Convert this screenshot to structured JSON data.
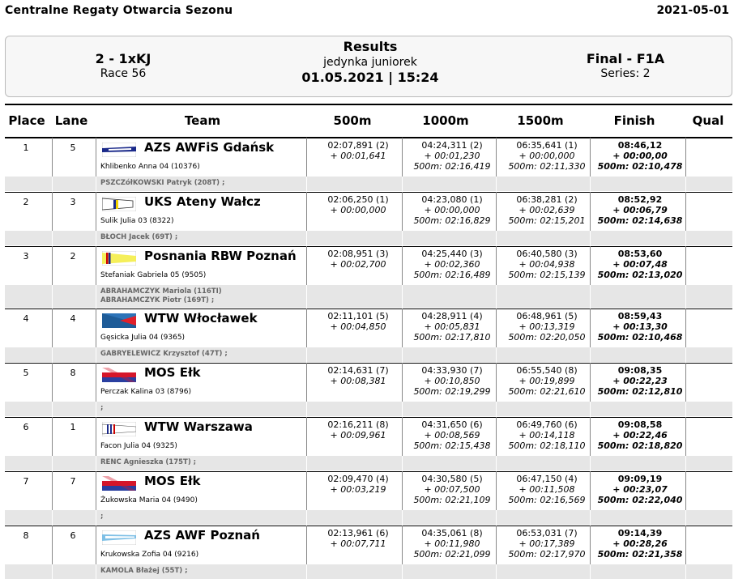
{
  "header": {
    "title": "Centralne Regaty Otwarcia Sezonu",
    "date": "2021-05-01"
  },
  "race": {
    "event": "2 - 1xKJ",
    "race_no": "Race 56",
    "results_label": "Results",
    "category": "jedynka juniorek",
    "datetime": "01.05.2021 | 15:24",
    "phase": "Final - F1A",
    "series": "Series: 2"
  },
  "columns": {
    "place": "Place",
    "lane": "Lane",
    "team": "Team",
    "s500": "500m",
    "s1000": "1000m",
    "s1500": "1500m",
    "finish": "Finish",
    "qual": "Qual"
  },
  "entries": [
    {
      "place": "1",
      "lane": "5",
      "club": "AZS AWFiS Gdańsk",
      "athlete": "Khlibenko Anna 04 (10376)",
      "coach": "PSZCZółKOWSKI Patryk (208T) ;",
      "coach2": "",
      "flag": "azs-gdansk",
      "s500": {
        "t": "02:07,891 (2)",
        "diff": "+ 00:01,641",
        "pace": ""
      },
      "s1000": {
        "t": "04:24,311 (2)",
        "diff": "+ 00:01,230",
        "pace": "500m: 02:16,419"
      },
      "s1500": {
        "t": "06:35,641 (1)",
        "diff": "+ 00:00,000",
        "pace": "500m: 02:11,330"
      },
      "finish": {
        "t": "08:46,12",
        "diff": "+ 00:00,00",
        "pace": "500m: 02:10,478"
      },
      "qual": ""
    },
    {
      "place": "2",
      "lane": "3",
      "club": "UKS Ateny Wałcz",
      "athlete": "Sulik Julia 03 (8322)",
      "coach": "BŁOCH Jacek (69T) ;",
      "coach2": "",
      "flag": "uks-walcz",
      "s500": {
        "t": "02:06,250 (1)",
        "diff": "+ 00:00,000",
        "pace": ""
      },
      "s1000": {
        "t": "04:23,080 (1)",
        "diff": "+ 00:00,000",
        "pace": "500m: 02:16,829"
      },
      "s1500": {
        "t": "06:38,281 (2)",
        "diff": "+ 00:02,639",
        "pace": "500m: 02:15,201"
      },
      "finish": {
        "t": "08:52,92",
        "diff": "+ 00:06,79",
        "pace": "500m: 02:14,638"
      },
      "qual": ""
    },
    {
      "place": "3",
      "lane": "2",
      "club": "Posnania RBW Poznań",
      "athlete": "Stefaniak Gabriela 05 (9505)",
      "coach": "ABRAHAMCZYK Mariola (116TI)",
      "coach2": "ABRAHAMCZYK Piotr (169T) ;",
      "flag": "posnania",
      "s500": {
        "t": "02:08,951 (3)",
        "diff": "+ 00:02,700",
        "pace": ""
      },
      "s1000": {
        "t": "04:25,440 (3)",
        "diff": "+ 00:02,360",
        "pace": "500m: 02:16,489"
      },
      "s1500": {
        "t": "06:40,580 (3)",
        "diff": "+ 00:04,938",
        "pace": "500m: 02:15,139"
      },
      "finish": {
        "t": "08:53,60",
        "diff": "+ 00:07,48",
        "pace": "500m: 02:13,020"
      },
      "qual": ""
    },
    {
      "place": "4",
      "lane": "4",
      "club": "WTW Włocławek",
      "athlete": "Gęsicka Julia 04 (9365)",
      "coach": "GABRYELEWICZ Krzysztof (47T) ;",
      "coach2": "",
      "flag": "wtw-wloclawek",
      "s500": {
        "t": "02:11,101 (5)",
        "diff": "+ 00:04,850",
        "pace": ""
      },
      "s1000": {
        "t": "04:28,911 (4)",
        "diff": "+ 00:05,831",
        "pace": "500m: 02:17,810"
      },
      "s1500": {
        "t": "06:48,961 (5)",
        "diff": "+ 00:13,319",
        "pace": "500m: 02:20,050"
      },
      "finish": {
        "t": "08:59,43",
        "diff": "+ 00:13,30",
        "pace": "500m: 02:10,468"
      },
      "qual": ""
    },
    {
      "place": "5",
      "lane": "8",
      "club": "MOS Ełk",
      "athlete": "Perczak Kalina 03 (8796)",
      "coach": ";",
      "coach2": "",
      "flag": "mos-elk",
      "s500": {
        "t": "02:14,631 (7)",
        "diff": "+ 00:08,381",
        "pace": ""
      },
      "s1000": {
        "t": "04:33,930 (7)",
        "diff": "+ 00:10,850",
        "pace": "500m: 02:19,299"
      },
      "s1500": {
        "t": "06:55,540 (8)",
        "diff": "+ 00:19,899",
        "pace": "500m: 02:21,610"
      },
      "finish": {
        "t": "09:08,35",
        "diff": "+ 00:22,23",
        "pace": "500m: 02:12,810"
      },
      "qual": ""
    },
    {
      "place": "6",
      "lane": "1",
      "club": "WTW Warszawa",
      "athlete": "Facon Julia 04 (9325)",
      "coach": "RENC Agnieszka (175T) ;",
      "coach2": "",
      "flag": "wtw-warszawa",
      "s500": {
        "t": "02:16,211 (8)",
        "diff": "+ 00:09,961",
        "pace": ""
      },
      "s1000": {
        "t": "04:31,650 (6)",
        "diff": "+ 00:08,569",
        "pace": "500m: 02:15,438"
      },
      "s1500": {
        "t": "06:49,760 (6)",
        "diff": "+ 00:14,118",
        "pace": "500m: 02:18,110"
      },
      "finish": {
        "t": "09:08,58",
        "diff": "+ 00:22,46",
        "pace": "500m: 02:18,820"
      },
      "qual": ""
    },
    {
      "place": "7",
      "lane": "7",
      "club": "MOS Ełk",
      "athlete": "Żukowska Maria 04 (9490)",
      "coach": ";",
      "coach2": "",
      "flag": "mos-elk",
      "s500": {
        "t": "02:09,470 (4)",
        "diff": "+ 00:03,219",
        "pace": ""
      },
      "s1000": {
        "t": "04:30,580 (5)",
        "diff": "+ 00:07,500",
        "pace": "500m: 02:21,109"
      },
      "s1500": {
        "t": "06:47,150 (4)",
        "diff": "+ 00:11,508",
        "pace": "500m: 02:16,569"
      },
      "finish": {
        "t": "09:09,19",
        "diff": "+ 00:23,07",
        "pace": "500m: 02:22,040"
      },
      "qual": ""
    },
    {
      "place": "8",
      "lane": "6",
      "club": "AZS AWF Poznań",
      "athlete": "Krukowska Zofia 04 (9216)",
      "coach": "KAMOLA Błażej (55T) ;",
      "coach2": "",
      "flag": "azs-poznan",
      "s500": {
        "t": "02:13,961 (6)",
        "diff": "+ 00:07,711",
        "pace": ""
      },
      "s1000": {
        "t": "04:35,061 (8)",
        "diff": "+ 00:11,980",
        "pace": "500m: 02:21,099"
      },
      "s1500": {
        "t": "06:53,031 (7)",
        "diff": "+ 00:17,389",
        "pace": "500m: 02:17,970"
      },
      "finish": {
        "t": "09:14,39",
        "diff": "+ 00:28,26",
        "pace": "500m: 02:21,358"
      },
      "qual": ""
    }
  ]
}
